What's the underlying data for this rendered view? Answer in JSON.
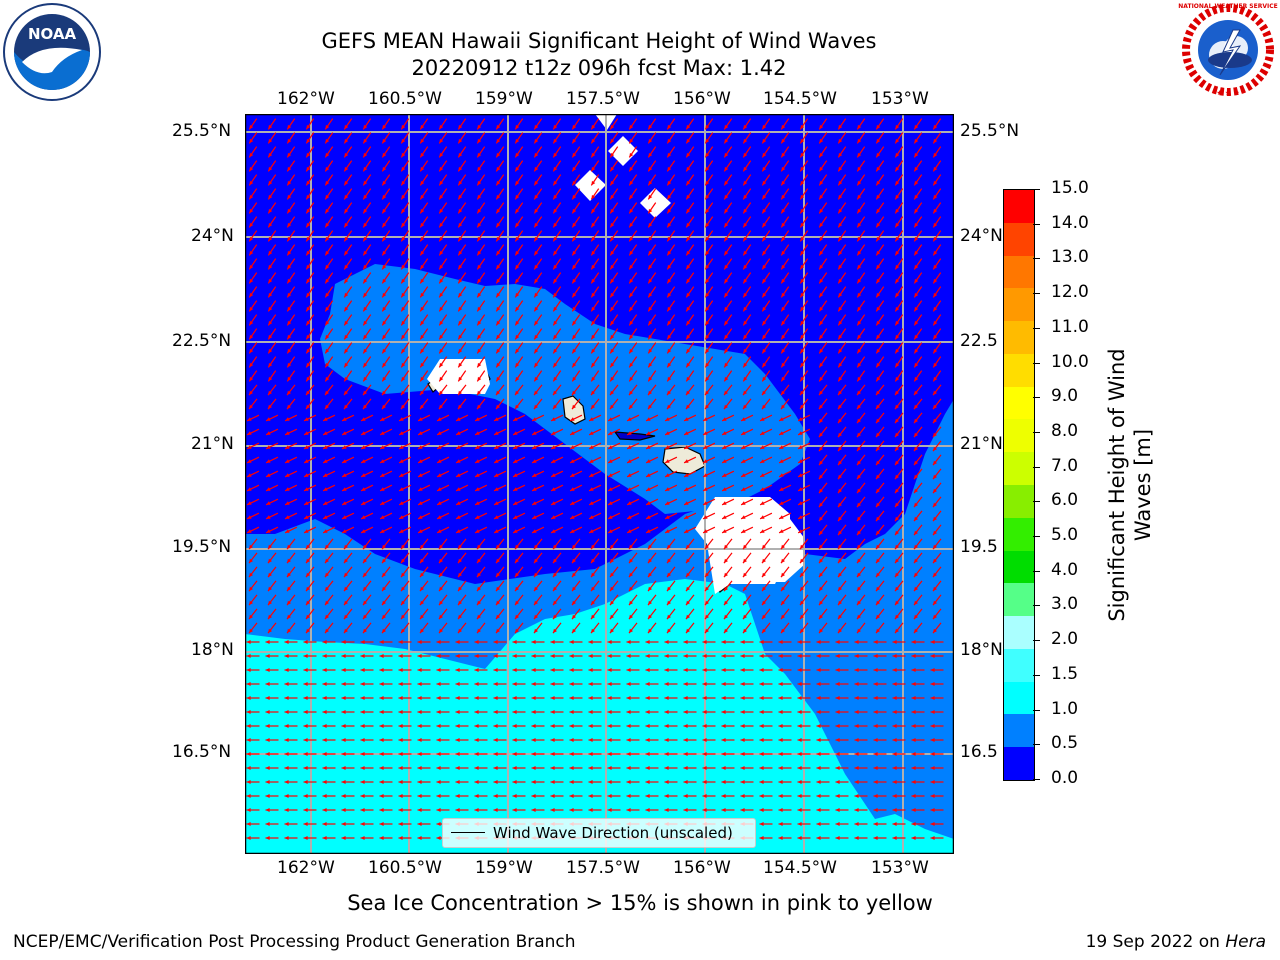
{
  "title": {
    "line1": "GEFS MEAN Hawaii Significant Height of Wind Waves",
    "line2": "20220912 t12z 096h fcst   Max: 1.42"
  },
  "map": {
    "lon_ticks": [
      "162°W",
      "160.5°W",
      "159°W",
      "157.5°W",
      "156°W",
      "154.5°W",
      "153°W"
    ],
    "lat_ticks_left": [
      "25.5°N",
      "24°N",
      "22.5°N",
      "21°N",
      "19.5°N",
      "18°N",
      "16.5°N"
    ],
    "lat_ticks_right": [
      "25.5°N",
      "24°N",
      "22.5",
      "21°N",
      "19.5",
      "18°N",
      "16.5"
    ],
    "legend": "Wind Wave Direction (unscaled)",
    "arrow_color": "#ff0000",
    "land_color": "#eeebd9"
  },
  "colorbar": {
    "label_line1": "Significant Height of Wind",
    "label_line2": "Waves [m]",
    "ticks": [
      "15.0",
      "14.0",
      "13.0",
      "12.0",
      "11.0",
      "10.0",
      "9.0",
      "8.0",
      "7.0",
      "6.0",
      "5.0",
      "4.0",
      "3.0",
      "2.0",
      "1.5",
      "1.0",
      "0.5",
      "0.0"
    ],
    "colors": [
      "#0000ff",
      "#0080ff",
      "#00ffff",
      "#40ffff",
      "#aaffff",
      "#55ff88",
      "#00dd00",
      "#33ee00",
      "#88ee00",
      "#ccff00",
      "#eeff00",
      "#ffff00",
      "#ffdd00",
      "#ffbb00",
      "#ff9900",
      "#ff7700",
      "#ff4400",
      "#ff0000"
    ]
  },
  "caption": "Sea Ice Concentration > 15% is shown in pink to yellow",
  "footer": {
    "left": "NCEP/EMC/Verification Post Processing Product Generation Branch",
    "right_date": "19 Sep 2022 on ",
    "right_host": "Hera"
  },
  "logos": {
    "left_text": "NOAA",
    "right_ring": "NATIONAL WEATHER SERVICE"
  }
}
